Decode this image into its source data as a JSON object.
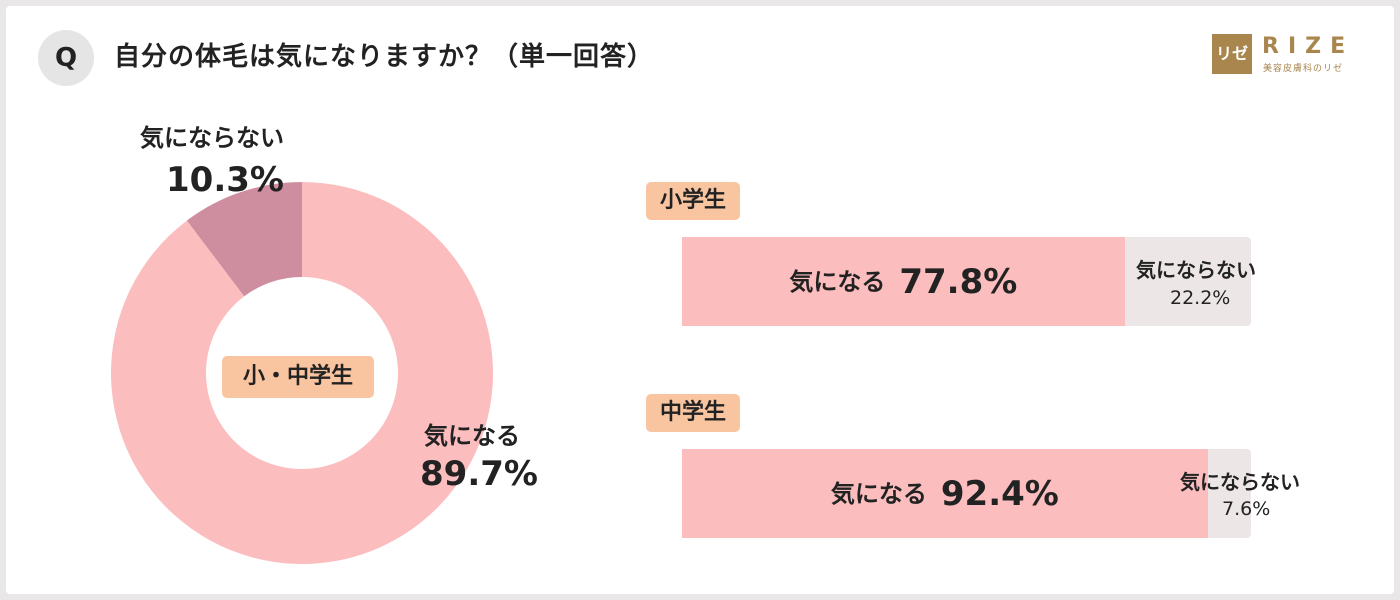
{
  "header": {
    "q_mark": "Q",
    "question": "自分の体毛は気になりますか？（単一回答）",
    "logo_mark": "リゼ",
    "logo_word": "RIZE",
    "logo_sub": "美容皮膚科のリゼ"
  },
  "colors": {
    "accent_pink": "#fbbdbe",
    "minor_pink": "#cf8e9f",
    "rest_gray": "#ece7e6",
    "tag_orange": "#f9c5a1",
    "brand_gold": "#a8864d"
  },
  "chart_data": [
    {
      "type": "pie",
      "style": "donut",
      "center_label": "小・中学生",
      "slices": [
        {
          "label": "気にならない",
          "value": 10.3,
          "value_label": "10.3%",
          "color": "#cf8e9f"
        },
        {
          "label": "気になる",
          "value": 89.7,
          "value_label": "89.7%",
          "color": "#fbbdbe"
        }
      ]
    },
    {
      "type": "bar",
      "orientation": "horizontal",
      "stacked": true,
      "percent_scale": [
        0,
        100
      ],
      "groups": [
        {
          "tag": "小学生",
          "segments": [
            {
              "label": "気になる",
              "value": 77.8,
              "value_label": "77.8%"
            },
            {
              "label": "気にならない",
              "value": 22.2,
              "value_label": "22.2%"
            }
          ]
        },
        {
          "tag": "中学生",
          "segments": [
            {
              "label": "気になる",
              "value": 92.4,
              "value_label": "92.4%"
            },
            {
              "label": "気にならない",
              "value": 7.6,
              "value_label": "7.6%"
            }
          ]
        }
      ]
    }
  ]
}
